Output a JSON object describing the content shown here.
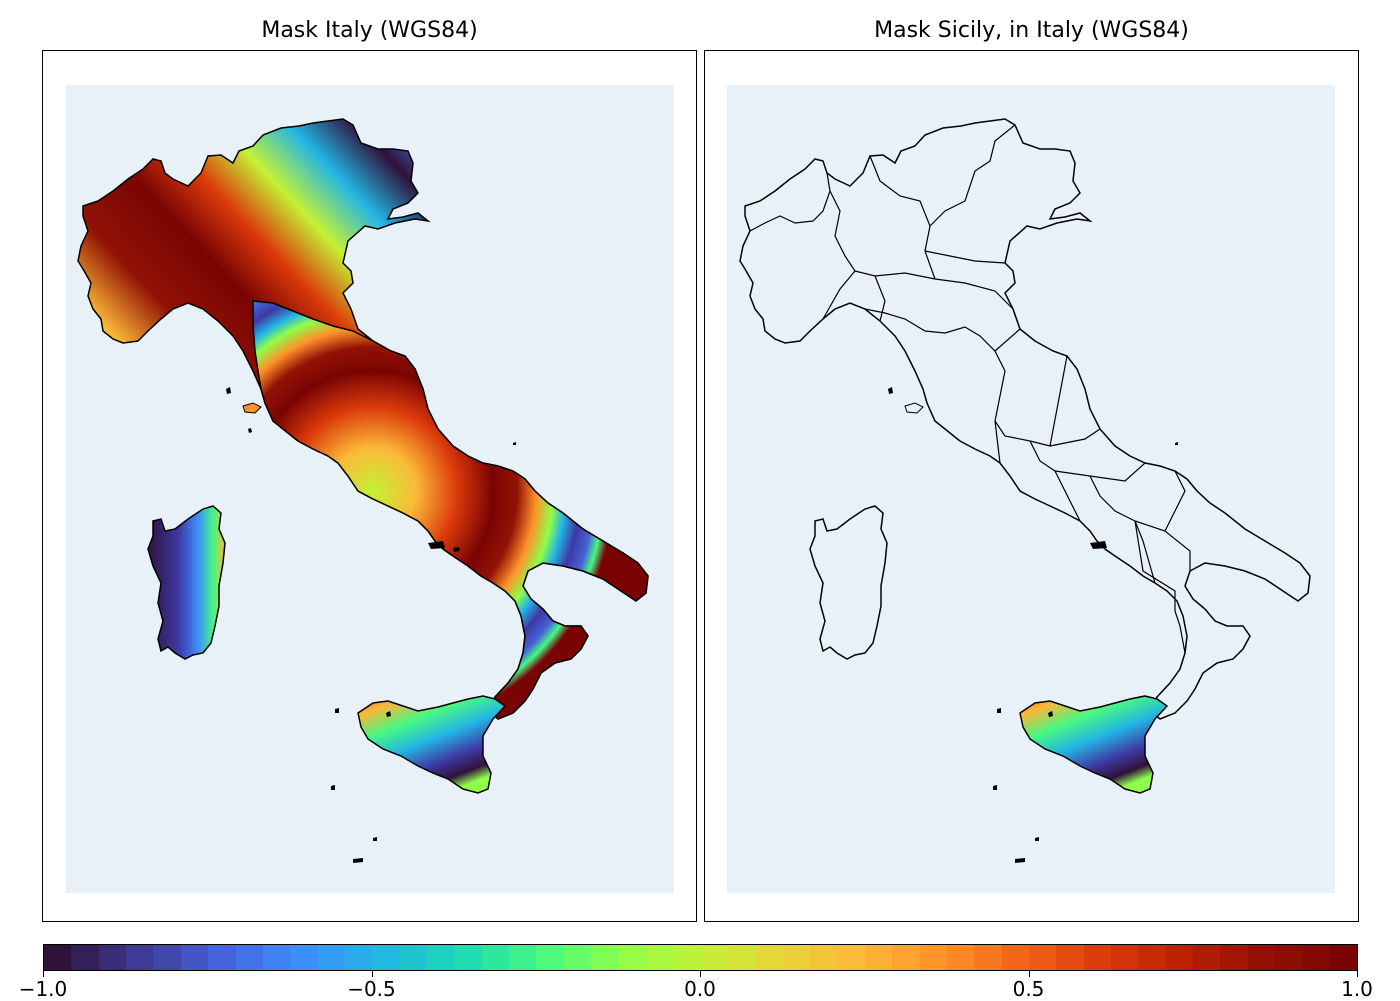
{
  "panels": [
    {
      "title": "Mask Italy (WGS84)"
    },
    {
      "title": "Mask Sicily, in Italy (WGS84)"
    }
  ],
  "colorbar": {
    "min": -1.0,
    "max": 1.0,
    "ticks": [
      "−1.0",
      "−0.5",
      "0.0",
      "0.5",
      "1.0"
    ],
    "colormap": "turbo",
    "colors": [
      "#30123b",
      "#3e3994",
      "#4662d7",
      "#3e8dfe",
      "#23b6e4",
      "#18d9b4",
      "#46f883",
      "#8efe49",
      "#c3f235",
      "#e7d339",
      "#fbb938",
      "#fe922a",
      "#f3631a",
      "#db3a0b",
      "#bb2002",
      "#921205",
      "#7a0403"
    ]
  },
  "map": {
    "ocean_color": "#e8f0f8",
    "outline_color": "#000000"
  }
}
